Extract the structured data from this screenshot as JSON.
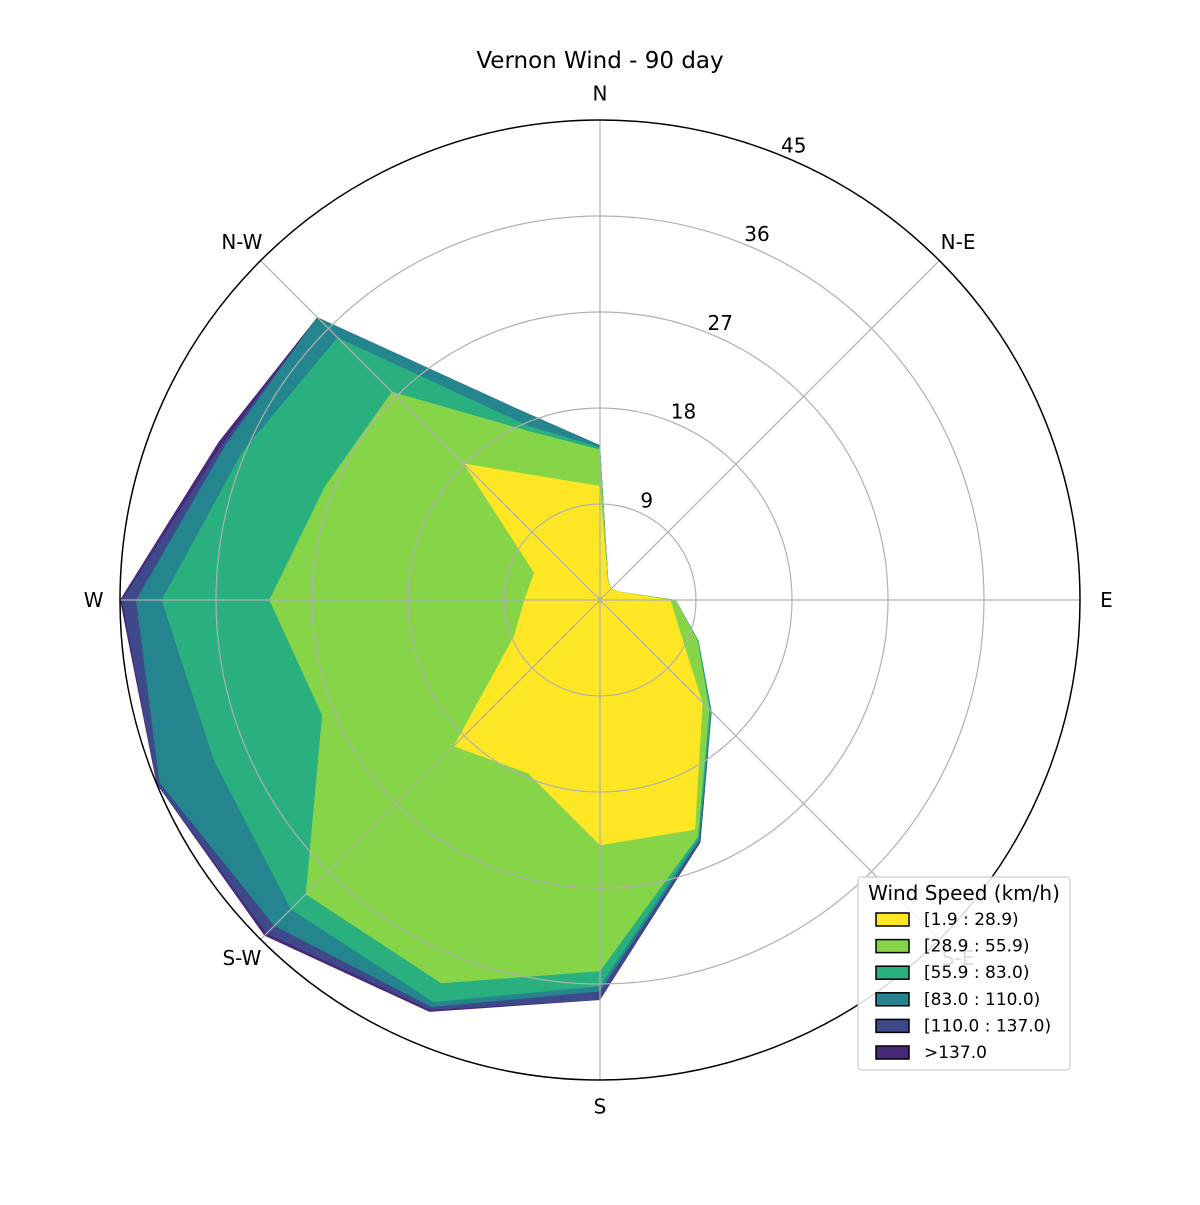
{
  "chart_data": {
    "type": "area",
    "title": "Vernon Wind - 90 day",
    "directions": [
      "N",
      "N-E",
      "E",
      "S-E",
      "S",
      "S-W",
      "W",
      "N-W"
    ],
    "angles_deg": [
      0,
      22.5,
      45,
      67.5,
      90,
      112.5,
      135,
      157.5,
      180,
      202.5,
      225,
      247.5,
      270,
      292.5,
      315,
      337.5
    ],
    "radial_ticks": [
      9,
      18,
      27,
      36,
      45
    ],
    "rmax": 45,
    "grid": true,
    "legend": {
      "title": "Wind Speed (km/h)",
      "placement": "lower-right"
    },
    "series": [
      {
        "name": "[1.9 : 28.9)",
        "color": "#fde725",
        "values": [
          10.7,
          1.9,
          1.5,
          2.0,
          6.6,
          8.2,
          13.6,
          23.3,
          23.0,
          17.6,
          19.4,
          8.7,
          7.1,
          6.7,
          18.1,
          12.4
        ]
      },
      {
        "name": "[28.9 : 55.9)",
        "color": "#86d549",
        "values": [
          14.1,
          2.0,
          1.5,
          2.0,
          7.1,
          9.9,
          14.5,
          24.0,
          34.8,
          38.9,
          39.0,
          28.2,
          31.0,
          27.9,
          27.6,
          17.1
        ]
      },
      {
        "name": "[55.9 : 83.0)",
        "color": "#2ab07f",
        "values": [
          14.3,
          2.0,
          1.5,
          2.0,
          7.1,
          10.0,
          14.7,
          24.2,
          36.2,
          40.8,
          41.0,
          39.2,
          41.1,
          36.3,
          34.8,
          17.7
        ]
      },
      {
        "name": "[83.0 : 110.0)",
        "color": "#25858e",
        "values": [
          14.5,
          2.0,
          1.5,
          2.0,
          7.1,
          10.0,
          14.8,
          24.4,
          36.7,
          41.3,
          43.2,
          44.7,
          43.5,
          38.0,
          37.5,
          19.2
        ]
      },
      {
        "name": "[110.0 : 137.0)",
        "color": "#3e4989",
        "values": [
          14.5,
          2.0,
          1.5,
          2.0,
          7.1,
          10.0,
          14.8,
          24.6,
          37.5,
          41.6,
          44.2,
          45.0,
          44.8,
          38.3,
          37.5,
          19.2
        ]
      },
      {
        "name": ">137.0",
        "color": "#482878",
        "values": [
          14.5,
          2.0,
          1.5,
          2.0,
          7.1,
          10.0,
          14.8,
          24.6,
          37.5,
          41.8,
          44.5,
          45.0,
          45.0,
          38.7,
          37.5,
          19.2
        ]
      }
    ]
  }
}
